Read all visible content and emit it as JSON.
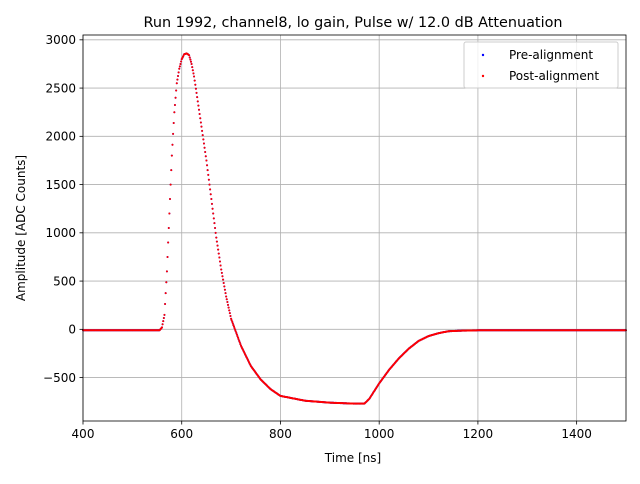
{
  "chart_data": {
    "type": "scatter",
    "title": "Run 1992, channel8, lo gain, Pulse w/ 12.0 dB Attenuation",
    "xlabel": "Time [ns]",
    "ylabel": "Amplitude [ADC Counts]",
    "xlim": [
      400,
      1500
    ],
    "ylim": [
      -950,
      3050
    ],
    "xticks": [
      400,
      600,
      800,
      1000,
      1200,
      1400
    ],
    "yticks": [
      -500,
      0,
      500,
      1000,
      1500,
      2000,
      2500,
      3000
    ],
    "ytick_labels": [
      "−500",
      "0",
      "500",
      "1000",
      "1500",
      "2000",
      "2500",
      "3000"
    ],
    "grid": true,
    "legend_position": "top-right",
    "colors": {
      "pre": "#0000ff",
      "post": "#ff0000"
    },
    "series": [
      {
        "name": "Pre-alignment",
        "color": "#0000ff",
        "x": [
          400,
          500,
          555,
          560,
          565,
          570,
          575,
          580,
          585,
          590,
          595,
          600,
          605,
          610,
          615,
          620,
          625,
          630,
          640,
          650,
          660,
          670,
          680,
          690,
          700,
          720,
          740,
          760,
          780,
          800,
          850,
          900,
          950,
          970,
          980,
          990,
          1000,
          1020,
          1040,
          1060,
          1080,
          1100,
          1120,
          1140,
          1160,
          1200,
          1300,
          1400,
          1500
        ],
        "y": [
          -10,
          -10,
          -10,
          20,
          150,
          600,
          1200,
          1800,
          2250,
          2550,
          2700,
          2800,
          2850,
          2860,
          2840,
          2750,
          2620,
          2450,
          2100,
          1750,
          1350,
          950,
          620,
          340,
          110,
          -170,
          -380,
          -520,
          -620,
          -690,
          -740,
          -760,
          -770,
          -770,
          -720,
          -640,
          -560,
          -420,
          -300,
          -200,
          -120,
          -70,
          -40,
          -20,
          -15,
          -10,
          -10,
          -10,
          -10
        ]
      },
      {
        "name": "Post-alignment",
        "color": "#ff0000",
        "x": [
          400,
          500,
          555,
          560,
          565,
          570,
          575,
          580,
          585,
          590,
          595,
          600,
          605,
          610,
          615,
          620,
          625,
          630,
          640,
          650,
          660,
          670,
          680,
          690,
          700,
          720,
          740,
          760,
          780,
          800,
          850,
          900,
          950,
          970,
          980,
          990,
          1000,
          1020,
          1040,
          1060,
          1080,
          1100,
          1120,
          1140,
          1160,
          1200,
          1300,
          1400,
          1500
        ],
        "y": [
          -10,
          -10,
          -10,
          20,
          150,
          600,
          1200,
          1800,
          2250,
          2550,
          2700,
          2800,
          2850,
          2860,
          2840,
          2750,
          2620,
          2450,
          2100,
          1750,
          1350,
          950,
          620,
          340,
          110,
          -170,
          -380,
          -520,
          -620,
          -690,
          -740,
          -760,
          -770,
          -770,
          -720,
          -640,
          -560,
          -420,
          -300,
          -200,
          -120,
          -70,
          -40,
          -20,
          -15,
          -10,
          -10,
          -10,
          -10
        ]
      }
    ]
  }
}
